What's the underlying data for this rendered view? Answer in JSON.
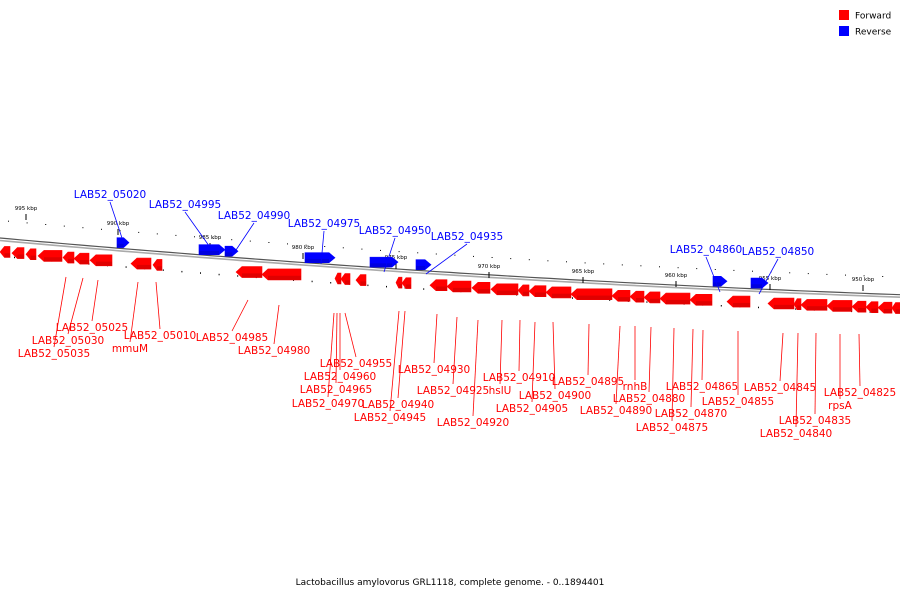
{
  "colors": {
    "forward": "#ff0000",
    "reverse": "#0000ff",
    "backbone": "#888888"
  },
  "legend": [
    {
      "label": "Forward",
      "color": "#ff0000"
    },
    {
      "label": "Reverse",
      "color": "#0000ff"
    }
  ],
  "caption": "Lactobacillus amylovorus GRL1118, complete genome. - 0..1894401",
  "scale_ticks": [
    "995 kbp",
    "990 kbp",
    "985 kbp",
    "980 kbp",
    "975 kbp",
    "970 kbp",
    "965 kbp",
    "960 kbp",
    "955 kbp",
    "950 kbp"
  ],
  "reverse_genes": [
    "LAB52_05020",
    "LAB52_04995",
    "LAB52_04990",
    "LAB52_04975",
    "LAB52_04950",
    "LAB52_04935",
    "LAB52_04860",
    "LAB52_04850"
  ],
  "forward_genes": [
    "LAB52_05025",
    "LAB52_05030",
    "LAB52_05035",
    "LAB52_05010",
    "mmuM",
    "LAB52_04985",
    "LAB52_04980",
    "LAB52_04955",
    "LAB52_04960",
    "LAB52_04965",
    "LAB52_04970",
    "LAB52_04940",
    "LAB52_04945",
    "LAB52_04930",
    "LAB52_04925",
    "LAB52_04920",
    "LAB52_04910",
    "hslU",
    "LAB52_04905",
    "LAB52_04900",
    "LAB52_04895",
    "rnhB",
    "LAB52_04890",
    "LAB52_04880",
    "LAB52_04875",
    "LAB52_04870",
    "LAB52_04865",
    "LAB52_04855",
    "LAB52_04845",
    "LAB52_04835",
    "LAB52_04840",
    "rpsA",
    "LAB52_04825"
  ]
}
